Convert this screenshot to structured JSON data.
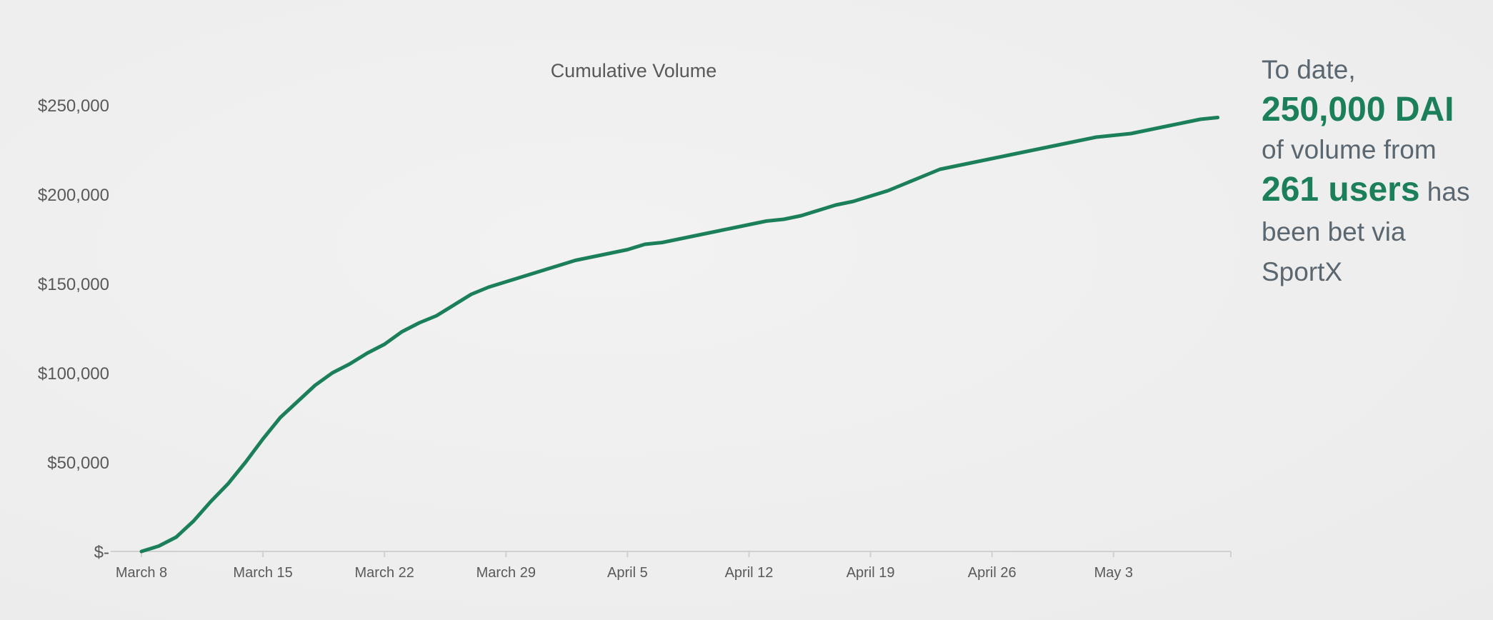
{
  "callout": {
    "line1": "To date,",
    "amount": "250,000 DAI",
    "line3": "of volume from",
    "users": "261 users",
    "line4a": " has",
    "line5": "been bet via",
    "line6": "SportX"
  },
  "colors": {
    "line": "#1b7f59",
    "axis": "#d0d0d0",
    "text": "#595959",
    "callout_text": "#5b6770",
    "accent": "#1b7f59"
  },
  "chart_data": {
    "type": "line",
    "title": "Cumulative Volume",
    "xlabel": "",
    "ylabel": "",
    "ylim": [
      0,
      250000
    ],
    "grid": false,
    "legend": "none",
    "y_ticks": [
      0,
      50000,
      100000,
      150000,
      200000,
      250000
    ],
    "y_tick_labels": [
      "$-",
      "$50,000",
      "$100,000",
      "$150,000",
      "$200,000",
      "$250,000"
    ],
    "x_tick_labels": [
      "March 8",
      "March 15",
      "March 22",
      "March 29",
      "April 5",
      "April 12",
      "April 19",
      "April 26",
      "May 3"
    ],
    "x_start": "March 8",
    "series": [
      {
        "values": [
          0,
          3000,
          8000,
          17000,
          28000,
          38000,
          50000,
          63000,
          75000,
          84000,
          93000,
          100000,
          105000,
          111000,
          116000,
          123000,
          128000,
          132000,
          138000,
          144000,
          148000,
          151000,
          154000,
          157000,
          160000,
          163000,
          165000,
          167000,
          169000,
          172000,
          173000,
          175000,
          177000,
          179000,
          181000,
          183000,
          185000,
          186000,
          188000,
          191000,
          194000,
          196000,
          199000,
          202000,
          206000,
          210000,
          214000,
          216000,
          218000,
          220000,
          222000,
          224000,
          226000,
          228000,
          230000,
          232000,
          233000,
          234000,
          236000,
          238000,
          240000,
          242000,
          243000
        ]
      }
    ]
  }
}
